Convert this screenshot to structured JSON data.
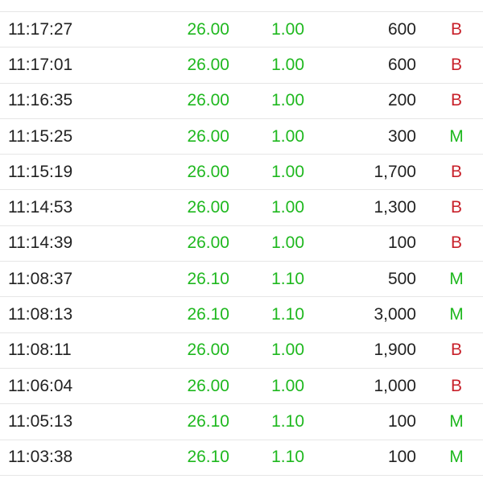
{
  "table": {
    "rows": [
      [
        "11:17:27",
        "26.00",
        "1.00",
        "600",
        "B"
      ],
      [
        "11:17:01",
        "26.00",
        "1.00",
        "600",
        "B"
      ],
      [
        "11:16:35",
        "26.00",
        "1.00",
        "200",
        "B"
      ],
      [
        "11:15:25",
        "26.00",
        "1.00",
        "300",
        "M"
      ],
      [
        "11:15:19",
        "26.00",
        "1.00",
        "1,700",
        "B"
      ],
      [
        "11:14:53",
        "26.00",
        "1.00",
        "1,300",
        "B"
      ],
      [
        "11:14:39",
        "26.00",
        "1.00",
        "100",
        "B"
      ],
      [
        "11:08:37",
        "26.10",
        "1.10",
        "500",
        "M"
      ],
      [
        "11:08:13",
        "26.10",
        "1.10",
        "3,000",
        "M"
      ],
      [
        "11:08:11",
        "26.00",
        "1.00",
        "1,900",
        "B"
      ],
      [
        "11:06:04",
        "26.00",
        "1.00",
        "1,000",
        "B"
      ],
      [
        "11:05:13",
        "26.10",
        "1.10",
        "100",
        "M"
      ],
      [
        "11:03:38",
        "26.10",
        "1.10",
        "100",
        "M"
      ]
    ]
  }
}
